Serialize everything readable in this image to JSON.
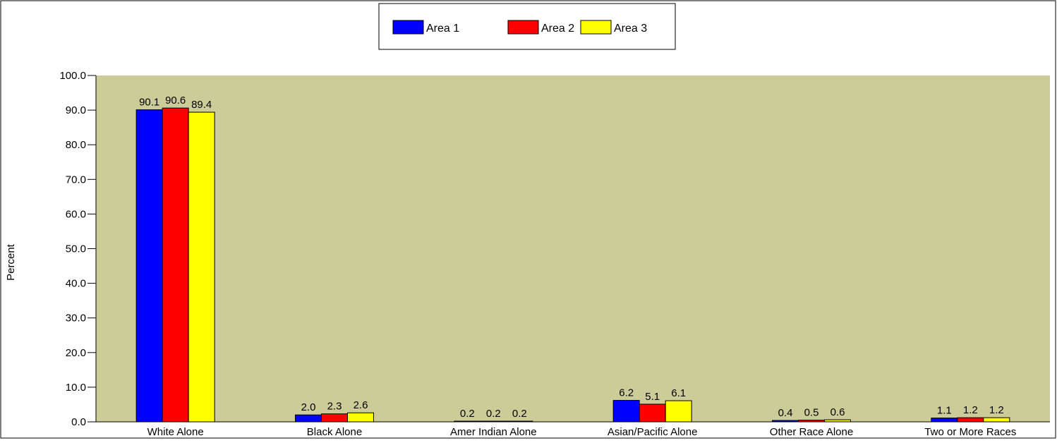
{
  "chart_data": {
    "type": "bar",
    "ylabel": "Percent",
    "xlabel": "",
    "ylim": [
      0,
      100
    ],
    "yticks": [
      "0.0",
      "10.0",
      "20.0",
      "30.0",
      "40.0",
      "50.0",
      "60.0",
      "70.0",
      "80.0",
      "90.0",
      "100.0"
    ],
    "categories": [
      "White Alone",
      "Black Alone",
      "Amer Indian Alone",
      "Asian/Pacific Alone",
      "Other Race Alone",
      "Two or More Races"
    ],
    "series": [
      {
        "name": "Area 1",
        "color": "#0000ff",
        "values": [
          90.1,
          2.0,
          0.2,
          6.2,
          0.4,
          1.1
        ],
        "labels": [
          "90.1",
          "2.0",
          "0.2",
          "6.2",
          "0.4",
          "1.1"
        ]
      },
      {
        "name": "Area 2",
        "color": "#ff0000",
        "values": [
          90.6,
          2.3,
          0.2,
          5.1,
          0.5,
          1.2
        ],
        "labels": [
          "90.6",
          "2.3",
          "0.2",
          "5.1",
          "0.5",
          "1.2"
        ]
      },
      {
        "name": "Area 3",
        "color": "#ffff00",
        "values": [
          89.4,
          2.6,
          0.2,
          6.1,
          0.6,
          1.2
        ],
        "labels": [
          "89.4",
          "2.6",
          "0.2",
          "6.1",
          "0.6",
          "1.2"
        ]
      }
    ],
    "plot_background": "#cccc99",
    "grid": false,
    "legend_position": "top-center"
  }
}
